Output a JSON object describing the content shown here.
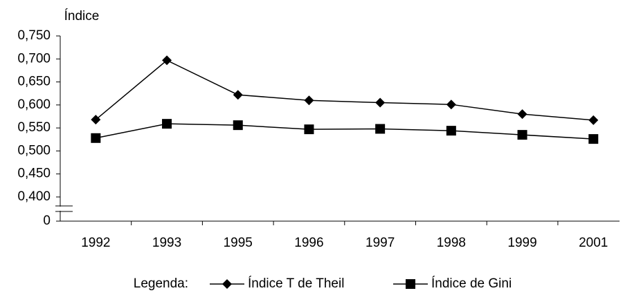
{
  "chart_data": {
    "type": "line",
    "y_label": "Índice",
    "categories": [
      "1992",
      "1993",
      "1995",
      "1996",
      "1997",
      "1998",
      "1999",
      "2001"
    ],
    "series": [
      {
        "name": "Índice T de Theil",
        "color": "#000000",
        "marker": "diamond",
        "values": [
          0.568,
          0.697,
          0.622,
          0.61,
          0.605,
          0.601,
          0.58,
          0.567
        ]
      },
      {
        "name": "Índice de Gini",
        "color": "#000000",
        "marker": "square",
        "values": [
          0.528,
          0.559,
          0.556,
          0.547,
          0.548,
          0.544,
          0.535,
          0.526
        ]
      }
    ],
    "ylim": [
      0,
      0.75
    ],
    "axis_break": [
      0,
      0.4
    ],
    "yticks": [
      0,
      {
        "value": 0.4,
        "label": "0,400"
      },
      {
        "value": 0.45,
        "label": "0,450"
      },
      {
        "value": 0.5,
        "label": "0,500"
      },
      {
        "value": 0.55,
        "label": "0,550"
      },
      {
        "value": 0.6,
        "label": "0,600"
      },
      {
        "value": 0.65,
        "label": "0,650"
      },
      {
        "value": 0.7,
        "label": "0,700"
      },
      {
        "value": 0.75,
        "label": "0,750"
      }
    ],
    "legend_title": "Legenda:",
    "legend_position": "bottom"
  }
}
